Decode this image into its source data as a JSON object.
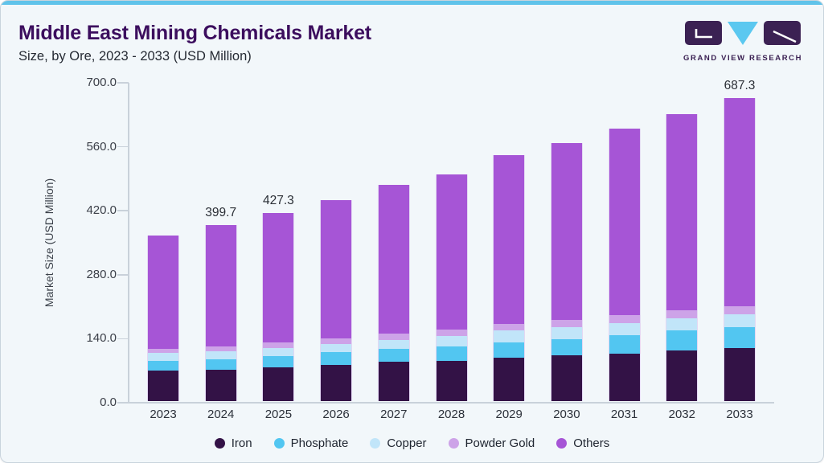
{
  "header": {
    "title": "Middle East Mining Chemicals Market",
    "subtitle": "Size, by Ore, 2023 - 2033 (USD Million)"
  },
  "logo": {
    "text": "GRAND VIEW RESEARCH",
    "brand_dark": "#3b2153",
    "brand_blue": "#5bc8f0"
  },
  "ui_colors": {
    "accent_bar": "#60c3ea",
    "card_background": "#f2f7fa",
    "title_color": "#3c0e5e",
    "axis_line": "#c9d1da"
  },
  "chart_data": {
    "type": "bar",
    "variant": "stacked-vertical",
    "title": "Middle East Mining Chemicals Market",
    "subtitle": "Size, by Ore, 2023 - 2033 (USD Million)",
    "xlabel": "",
    "ylabel": "Market Size (USD Million)",
    "ylim": [
      0,
      700
    ],
    "yticks": [
      "700.0",
      "560.0",
      "420.0",
      "280.0",
      "140.0",
      "0.0"
    ],
    "grid": "off",
    "legend_position": "bottom",
    "categories": [
      "2023",
      "2024",
      "2025",
      "2026",
      "2027",
      "2028",
      "2029",
      "2030",
      "2031",
      "2032",
      "2033"
    ],
    "series": [
      {
        "name": "Iron",
        "color": "#331246",
        "values": [
          68.8,
          71.0,
          76.5,
          82.0,
          89.5,
          92.0,
          98.5,
          103.5,
          108.0,
          115.0,
          120.0
        ]
      },
      {
        "name": "Phosphate",
        "color": "#52c6f1",
        "values": [
          22.0,
          24.0,
          26.5,
          28.5,
          29.5,
          33.0,
          35.5,
          37.5,
          42.0,
          45.0,
          48.0
        ]
      },
      {
        "name": "Copper",
        "color": "#c1e5f9",
        "values": [
          18.5,
          18.0,
          18.0,
          19.5,
          20.0,
          22.5,
          26.0,
          27.0,
          27.5,
          28.0,
          28.5
        ]
      },
      {
        "name": "Powder Gold",
        "color": "#cda3e8",
        "values": [
          9.2,
          10.5,
          12.0,
          13.0,
          14.0,
          14.5,
          15.5,
          16.5,
          17.0,
          17.5,
          18.3
        ]
      },
      {
        "name": "Others",
        "color": "#a655d6",
        "values": [
          256.9,
          276.2,
          294.3,
          314.1,
          337.4,
          352.9,
          382.1,
          401.1,
          424.0,
          446.4,
          472.5
        ]
      }
    ],
    "totals": [
      375.4,
      399.7,
      427.3,
      457.1,
      490.4,
      514.9,
      557.6,
      585.6,
      618.5,
      651.9,
      687.3
    ],
    "data_labels": [
      "",
      "399.7",
      "427.3",
      "",
      "",
      "",
      "",
      "",
      "",
      "",
      "687.3"
    ]
  }
}
